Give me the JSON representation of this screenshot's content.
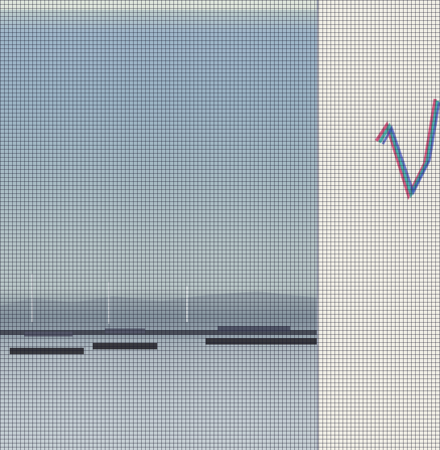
{
  "scene": {
    "photo_colors": {
      "sky": "#9bb3c4",
      "water": "#b9c6c7",
      "shoreline": "#2b2a30"
    },
    "panel_color": "#f1efe6",
    "glyph_colors": [
      "#d03a6a",
      "#2aa8a0",
      "#3a4bbd"
    ]
  }
}
